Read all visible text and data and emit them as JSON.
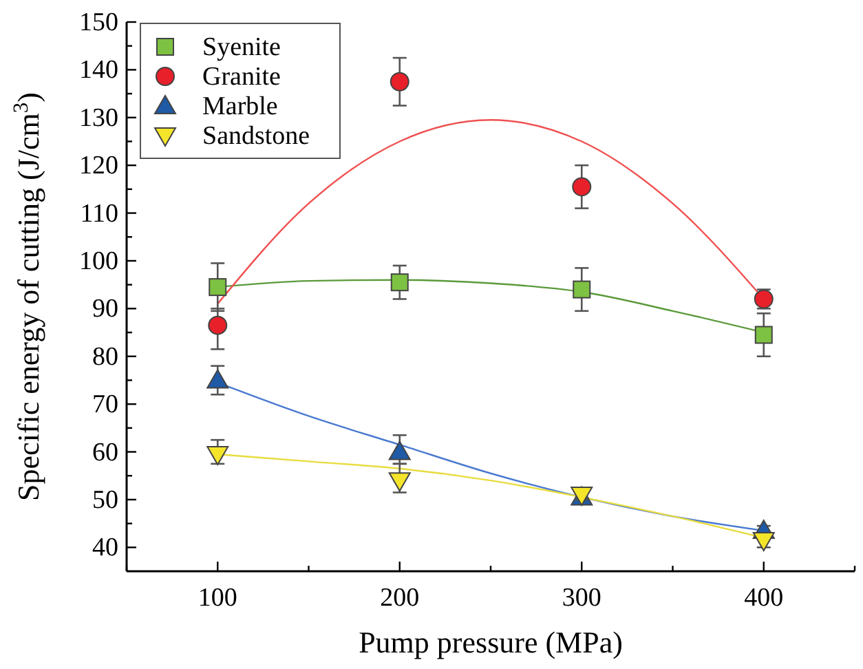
{
  "chart_data": {
    "type": "scatter",
    "xlabel": "Pump pressure (MPa)",
    "ylabel": "Specific energy of cutting (J/cm$^{3}$)",
    "x": [
      100,
      200,
      300,
      400
    ],
    "xlim": [
      50,
      450
    ],
    "xticks": [
      {
        "value": 50,
        "label": null
      },
      100,
      {
        "value": 150,
        "label": null
      },
      200,
      {
        "value": 250,
        "label": null
      },
      300,
      {
        "value": 350,
        "label": null
      },
      400,
      {
        "value": 450,
        "label": null
      }
    ],
    "ylim": [
      35,
      150
    ],
    "yticks": [
      40,
      {
        "value": 45,
        "label": null
      },
      50,
      {
        "value": 55,
        "label": null
      },
      60,
      {
        "value": 65,
        "label": null
      },
      70,
      {
        "value": 75,
        "label": null
      },
      80,
      {
        "value": 85,
        "label": null
      },
      90,
      {
        "value": 95,
        "label": null
      },
      100,
      {
        "value": 105,
        "label": null
      },
      110,
      {
        "value": 115,
        "label": null
      },
      120,
      {
        "value": 125,
        "label": null
      },
      130,
      {
        "value": 135,
        "label": null
      },
      140,
      {
        "value": 145,
        "label": null
      },
      150
    ],
    "grid": false,
    "legend": "top left",
    "line_style": "solid",
    "series": [
      {
        "type": "line",
        "color": "#5a9a3a",
        "x": [
          100,
          150,
          200,
          250,
          300,
          350,
          400
        ],
        "values": [
          94.5,
          95.8,
          96,
          95.3,
          93.5,
          89.5,
          85
        ]
      },
      {
        "type": "line",
        "color": "#f05050",
        "x": [
          100,
          150,
          200,
          250,
          300,
          350,
          400
        ],
        "values": [
          91,
          112,
          125,
          129.5,
          125,
          112,
          92
        ]
      },
      {
        "type": "line",
        "color": "#4a7ad0",
        "x": [
          100,
          150,
          200,
          250,
          300,
          350,
          400
        ],
        "values": [
          74.5,
          67.5,
          61.5,
          55.5,
          50.5,
          46.5,
          43.5
        ]
      },
      {
        "type": "line",
        "color": "#e8dc40",
        "x": [
          100,
          150,
          200,
          250,
          300,
          350,
          400
        ],
        "values": [
          59.5,
          58,
          56.5,
          54,
          50.5,
          46.5,
          42
        ]
      },
      {
        "name": "Syenite",
        "color": "#7dc242",
        "marker": "square",
        "values": [
          94.5,
          95.5,
          94,
          84.5
        ],
        "errors": [
          [
            89.5,
            99.5
          ],
          [
            92,
            99
          ],
          [
            89.5,
            98.5
          ],
          [
            80,
            89
          ]
        ]
      },
      {
        "name": "Granite",
        "color": "#e8202a",
        "marker": "circle",
        "values": [
          86.5,
          137.5,
          115.5,
          92
        ],
        "errors": [
          [
            81.5,
            90
          ],
          [
            132.5,
            142.5
          ],
          [
            111,
            120
          ],
          [
            90,
            94
          ]
        ]
      },
      {
        "name": "Marble",
        "color": "#1f5aa6",
        "marker": "triangle",
        "values": [
          75,
          60,
          50.5,
          43.5
        ],
        "errors": [
          [
            72,
            78
          ],
          [
            57.5,
            63.5
          ],
          [
            49.5,
            51.5
          ],
          [
            42.5,
            44.5
          ]
        ]
      },
      {
        "name": "Sandstone",
        "color": "#f5e52a",
        "marker": "triangle-down",
        "values": [
          59.5,
          54,
          51,
          41.5
        ],
        "errors": [
          [
            57.5,
            62.5
          ],
          [
            51.5,
            57.5
          ],
          [
            50,
            52.5
          ],
          [
            40,
            43
          ]
        ]
      }
    ]
  }
}
